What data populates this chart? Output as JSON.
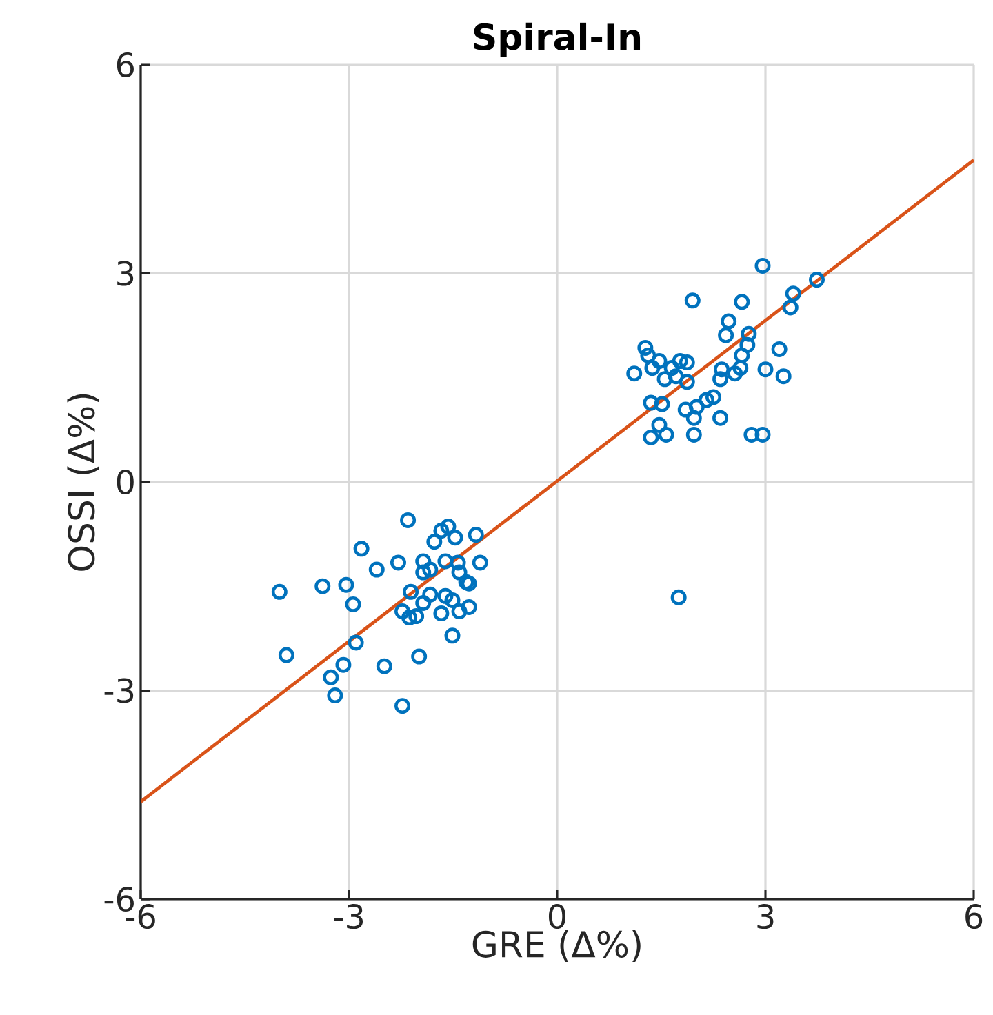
{
  "chart_data": {
    "type": "scatter",
    "title": "Spiral-In",
    "xlabel": "GRE (Δ%)",
    "ylabel": "OSSI (Δ%)",
    "xlim": [
      -6,
      6
    ],
    "ylim": [
      -6,
      6
    ],
    "xticks": [
      -6,
      -3,
      0,
      3,
      6
    ],
    "yticks": [
      -6,
      -3,
      0,
      3,
      6
    ],
    "grid": true,
    "series": [
      {
        "marker": "circle",
        "color": "#0072bd",
        "x": [
          -2.15,
          -4.0,
          -3.38,
          -3.04,
          -2.94,
          -2.82,
          -2.6,
          -2.29,
          -3.9,
          -2.9,
          -3.08,
          -3.26,
          -3.2,
          -2.49,
          -2.23,
          -1.99,
          -1.51,
          -2.11,
          -2.23,
          -2.13,
          -2.03,
          -1.93,
          -1.83,
          -1.67,
          -1.61,
          -1.51,
          -1.41,
          -1.27,
          -1.27,
          -1.11,
          -1.93,
          -1.83,
          -1.77,
          -1.67,
          -1.57,
          -1.47,
          -1.17,
          -1.43,
          -1.41,
          -1.31,
          -1.61,
          -1.93,
          2.96,
          1.95,
          2.66,
          3.4,
          3.74,
          3.36,
          2.47,
          2.43,
          2.76,
          2.74,
          2.66,
          3.2,
          3.0,
          3.26,
          2.64,
          2.56,
          2.37,
          2.35,
          1.27,
          1.31,
          1.11,
          1.47,
          1.37,
          1.55,
          1.65,
          1.77,
          1.87,
          1.71,
          1.87,
          1.35,
          1.51,
          1.85,
          2.01,
          2.15,
          2.25,
          2.35,
          1.97,
          1.47,
          1.35,
          1.57,
          1.97,
          2.8,
          2.96,
          1.75
        ],
        "values": [
          -0.55,
          -1.58,
          -1.5,
          -1.48,
          -1.76,
          -0.96,
          -1.26,
          -1.16,
          -2.49,
          -2.31,
          -2.63,
          -2.81,
          -3.07,
          -2.65,
          -3.22,
          -2.51,
          -2.21,
          -1.58,
          -1.86,
          -1.95,
          -1.93,
          -1.74,
          -1.62,
          -1.89,
          -1.64,
          -1.7,
          -1.86,
          -1.8,
          -1.46,
          -1.16,
          -1.14,
          -1.26,
          -0.86,
          -0.7,
          -0.64,
          -0.8,
          -0.76,
          -1.16,
          -1.3,
          -1.44,
          -1.14,
          -1.3,
          3.11,
          2.61,
          2.59,
          2.71,
          2.91,
          2.51,
          2.31,
          2.11,
          2.13,
          1.97,
          1.82,
          1.91,
          1.62,
          1.52,
          1.64,
          1.56,
          1.62,
          1.48,
          1.93,
          1.82,
          1.56,
          1.74,
          1.64,
          1.48,
          1.64,
          1.74,
          1.72,
          1.52,
          1.44,
          1.14,
          1.12,
          1.04,
          1.08,
          1.18,
          1.22,
          0.92,
          0.92,
          0.82,
          0.64,
          0.68,
          0.68,
          0.68,
          0.68,
          -1.66
        ]
      },
      {
        "type": "line",
        "marker": "none",
        "color": "#d95319",
        "x": [
          -6,
          6
        ],
        "values": [
          -4.6,
          4.63
        ]
      }
    ]
  }
}
